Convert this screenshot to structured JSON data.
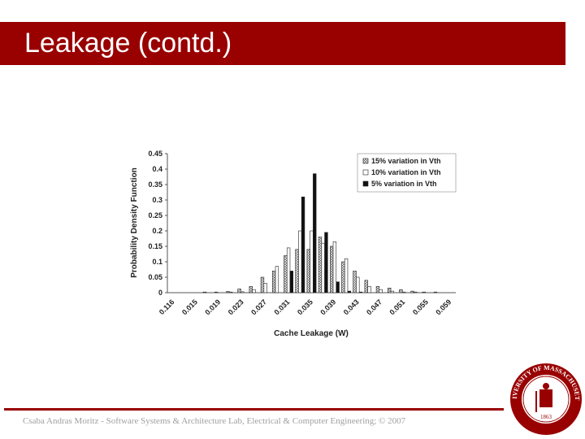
{
  "slide": {
    "title": "Leakage (contd.)",
    "footer": "Csaba Andras Moritz - Software Systems & Architecture Lab, Electrical & Computer Engineering; © 2007",
    "title_bar_color": "#990000",
    "seal": {
      "ring_text_top": "UNIVERSITY OF MASSACHUSETTS",
      "ring_text_bottom": "AMHERST",
      "year": "1863",
      "color": "#990000"
    }
  },
  "chart_data": {
    "type": "bar",
    "title": "",
    "xlabel": "Cache Leakage (W)",
    "ylabel": "Probability Density Function",
    "ylim": [
      0,
      0.45
    ],
    "yticks": [
      "0",
      "0.05",
      "0.1",
      "0.15",
      "0.2",
      "0.25",
      "0.3",
      "0.35",
      "0.4",
      "0.45"
    ],
    "categories": [
      "0.116",
      "",
      "0.015",
      "",
      "0.019",
      "",
      "0.023",
      "",
      "0.027",
      "",
      "0.031",
      "",
      "0.035",
      "",
      "0.039",
      "",
      "0.043",
      "",
      "0.047",
      "",
      "0.051",
      "",
      "0.055",
      "",
      "0.059"
    ],
    "legend_position": "top-right",
    "grid": false,
    "series": [
      {
        "name": "15% variation in Vth",
        "pattern": "crosshatch",
        "values": [
          0,
          0,
          0,
          0.002,
          0.002,
          0.004,
          0.012,
          0.02,
          0.05,
          0.07,
          0.12,
          0.14,
          0.14,
          0.18,
          0.15,
          0.1,
          0.07,
          0.04,
          0.02,
          0.015,
          0.01,
          0.005,
          0.002,
          0.001,
          0
        ]
      },
      {
        "name": "10% variation in Vth",
        "pattern": "white",
        "values": [
          0,
          0,
          0,
          0,
          0,
          0.001,
          0.003,
          0.01,
          0.03,
          0.085,
          0.145,
          0.2,
          0.2,
          0.16,
          0.165,
          0.11,
          0.05,
          0.02,
          0.01,
          0.005,
          0.002,
          0.001,
          0,
          0,
          0
        ]
      },
      {
        "name": "5%  variation in Vth",
        "pattern": "black",
        "values": [
          0,
          0,
          0,
          0,
          0,
          0,
          0,
          0,
          0,
          0,
          0.07,
          0.31,
          0.385,
          0.195,
          0.035,
          0.005,
          0.001,
          0,
          0,
          0,
          0,
          0,
          0,
          0,
          0
        ]
      }
    ]
  }
}
